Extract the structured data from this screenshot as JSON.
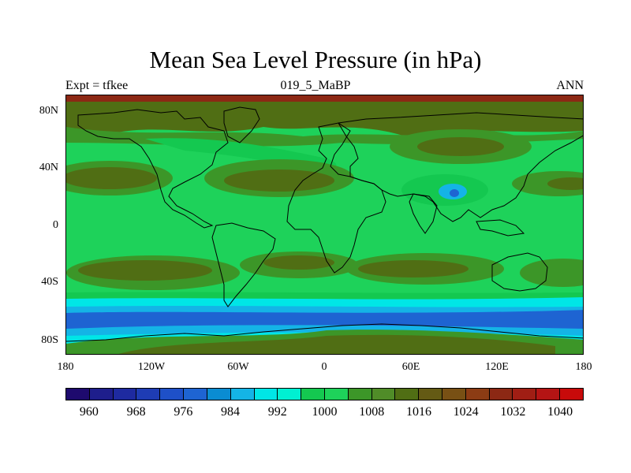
{
  "title": "Mean Sea Level Pressure (in hPa)",
  "subtitle_left": "Expt = tfkee",
  "subtitle_center": "019_5_MaBP",
  "subtitle_right": "ANN",
  "y_ticks": [
    "80N",
    "40N",
    "0",
    "40S",
    "80S"
  ],
  "x_ticks": [
    "180",
    "120W",
    "60W",
    "0",
    "60E",
    "120E",
    "180"
  ],
  "colorbar": {
    "labels": [
      "960",
      "968",
      "976",
      "984",
      "992",
      "1000",
      "1008",
      "1016",
      "1024",
      "1032",
      "1040"
    ],
    "colors": [
      "#1e0a6e",
      "#1e1e8c",
      "#1e2aa0",
      "#1e3cb4",
      "#1e50c8",
      "#1e64d2",
      "#0a8cd2",
      "#14b4e6",
      "#00e6e6",
      "#00f0d2",
      "#14c850",
      "#1ed25a",
      "#3c9628",
      "#508c28",
      "#506e14",
      "#645a14",
      "#785014",
      "#8c3c14",
      "#8c2814",
      "#a01e14",
      "#b41414",
      "#c80a0a"
    ]
  },
  "map_colors": {
    "ocean_green": "#1ed25a",
    "light_green": "#14c850",
    "high": "#506e14",
    "mid_high": "#3c9628",
    "cyan": "#00e6e6",
    "light_blue": "#14b4e6",
    "blue": "#1e64d2",
    "red_band": "#8c2814"
  }
}
